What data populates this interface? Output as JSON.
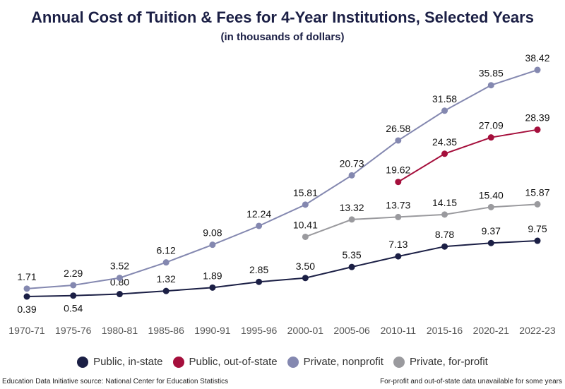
{
  "chart_data": {
    "type": "line",
    "title": "Annual Cost of Tuition & Fees for 4-Year Institutions, Selected Years",
    "subtitle": "(in thousands of dollars)",
    "categories": [
      "1970-71",
      "1975-76",
      "1980-81",
      "1985-86",
      "1990-91",
      "1995-96",
      "2000-01",
      "2005-06",
      "2010-11",
      "2015-16",
      "2020-21",
      "2022-23"
    ],
    "series": [
      {
        "name": "Public, in-state",
        "color": "#1b1f45",
        "values": [
          0.39,
          0.54,
          0.8,
          1.32,
          1.89,
          2.85,
          3.5,
          5.35,
          7.13,
          8.78,
          9.37,
          9.75
        ]
      },
      {
        "name": "Public, out-of-state",
        "color": "#a50f3c",
        "values": [
          null,
          null,
          null,
          null,
          null,
          null,
          null,
          null,
          19.62,
          24.35,
          27.09,
          28.39
        ]
      },
      {
        "name": "Private, nonprofit",
        "color": "#8488b0",
        "values": [
          1.71,
          2.29,
          3.52,
          6.12,
          9.08,
          12.24,
          15.81,
          20.73,
          26.58,
          31.58,
          35.85,
          38.42
        ]
      },
      {
        "name": "Private, for-profit",
        "color": "#9a9a9e",
        "values": [
          null,
          null,
          null,
          null,
          null,
          null,
          10.41,
          13.32,
          13.73,
          14.15,
          15.4,
          15.87
        ]
      }
    ],
    "grid": false,
    "legend": "bottom",
    "xlabel": "",
    "ylabel": ""
  },
  "footer": {
    "source": "Education Data Initiative source: National Center for Education Statistics",
    "note": "For-profit and out-of-state data unavailable for some years"
  }
}
